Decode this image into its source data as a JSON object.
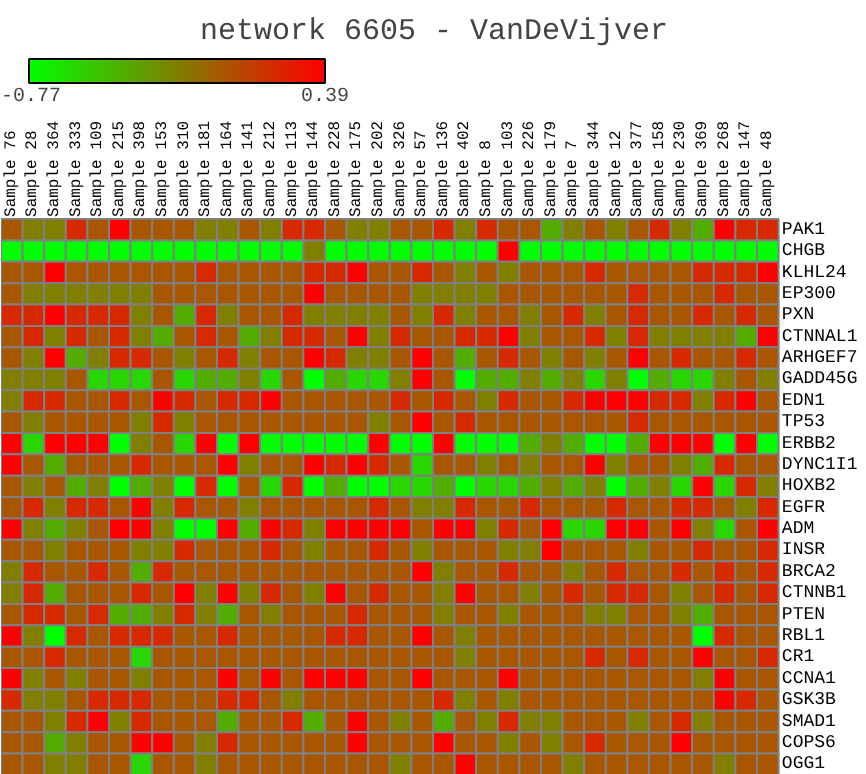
{
  "chart_data": {
    "type": "heatmap",
    "title": "network 6605 - VanDeVijver",
    "categories": [
      "Sample 76",
      "Sample 28",
      "Sample 364",
      "Sample 333",
      "Sample 109",
      "Sample 215",
      "Sample 398",
      "Sample 153",
      "Sample 310",
      "Sample 181",
      "Sample 164",
      "Sample 141",
      "Sample 212",
      "Sample 113",
      "Sample 144",
      "Sample 228",
      "Sample 175",
      "Sample 202",
      "Sample 326",
      "Sample 57",
      "Sample 136",
      "Sample 402",
      "Sample 8",
      "Sample 103",
      "Sample 226",
      "Sample 179",
      "Sample 7",
      "Sample 344",
      "Sample 12",
      "Sample 377",
      "Sample 158",
      "Sample 230",
      "Sample 369",
      "Sample 268",
      "Sample 147",
      "Sample 48"
    ],
    "y_categories": [
      "PAK1",
      "CHGB",
      "KLHL24",
      "EP300",
      "PXN",
      "CTNNAL1",
      "ARHGEF7",
      "GADD45G",
      "EDN1",
      "TP53",
      "ERBB2",
      "DYNC1I1",
      "HOXB2",
      "EGFR",
      "ADM",
      "INSR",
      "BRCA2",
      "CTNNB1",
      "PTEN",
      "RBL1",
      "CR1",
      "CCNA1",
      "GSK3B",
      "SMAD1",
      "COPS6",
      "OGG1"
    ],
    "cells": [
      [
        0.0,
        -0.19,
        -0.19,
        0.2,
        0.0,
        0.39,
        0.0,
        0.0,
        0.0,
        -0.19,
        -0.19,
        0.0,
        -0.19,
        0.2,
        0.2,
        0.0,
        -0.19,
        -0.19,
        0.0,
        0.0,
        0.2,
        -0.19,
        0.2,
        0.0,
        0.0,
        -0.39,
        -0.19,
        0.0,
        -0.19,
        0.0,
        0.2,
        -0.19,
        -0.39,
        0.39,
        0.2,
        0.2
      ],
      [
        -0.77,
        -0.77,
        -0.77,
        -0.77,
        -0.77,
        -0.77,
        -0.77,
        -0.77,
        -0.77,
        -0.77,
        -0.77,
        -0.77,
        -0.77,
        -0.77,
        -0.19,
        -0.77,
        -0.77,
        -0.77,
        -0.77,
        -0.77,
        -0.77,
        -0.77,
        -0.77,
        0.39,
        -0.77,
        -0.77,
        -0.77,
        -0.77,
        -0.77,
        -0.77,
        -0.77,
        -0.77,
        -0.77,
        -0.77,
        -0.77,
        -0.77
      ],
      [
        0.0,
        0.0,
        0.39,
        0.0,
        0.0,
        0.0,
        0.0,
        0.0,
        0.0,
        0.2,
        0.0,
        0.0,
        0.0,
        0.0,
        0.2,
        0.2,
        0.39,
        0.0,
        0.0,
        0.2,
        0.0,
        -0.19,
        0.0,
        -0.19,
        0.0,
        0.0,
        0.0,
        0.2,
        0.0,
        0.0,
        0.0,
        0.0,
        0.2,
        0.2,
        0.2,
        0.39
      ],
      [
        0.0,
        -0.19,
        -0.19,
        -0.19,
        -0.19,
        -0.19,
        -0.19,
        0.0,
        0.0,
        0.0,
        0.0,
        0.0,
        0.0,
        0.0,
        0.39,
        0.0,
        0.0,
        0.0,
        0.0,
        -0.19,
        -0.19,
        -0.19,
        -0.19,
        0.0,
        0.0,
        0.0,
        0.0,
        0.0,
        0.0,
        0.2,
        0.0,
        0.0,
        0.0,
        0.2,
        0.0,
        0.0
      ],
      [
        0.2,
        0.2,
        0.39,
        0.2,
        0.2,
        0.2,
        -0.19,
        0.0,
        -0.39,
        0.2,
        -0.19,
        0.0,
        0.0,
        0.2,
        -0.19,
        -0.19,
        -0.19,
        -0.19,
        0.0,
        -0.19,
        0.2,
        -0.19,
        0.0,
        0.0,
        -0.19,
        0.0,
        0.2,
        -0.19,
        0.0,
        0.2,
        0.0,
        0.0,
        0.2,
        0.0,
        0.2,
        0.0
      ],
      [
        0.0,
        0.2,
        -0.19,
        0.2,
        0.0,
        0.2,
        -0.19,
        -0.39,
        0.0,
        0.2,
        0.0,
        -0.39,
        -0.19,
        0.2,
        0.2,
        0.0,
        0.39,
        -0.19,
        0.2,
        0.0,
        0.0,
        0.2,
        0.2,
        0.39,
        -0.19,
        0.0,
        0.0,
        0.2,
        -0.19,
        0.2,
        -0.19,
        -0.19,
        -0.19,
        -0.19,
        -0.39,
        0.39
      ],
      [
        0.0,
        -0.19,
        0.39,
        -0.39,
        -0.19,
        0.2,
        0.2,
        0.0,
        -0.19,
        0.0,
        0.2,
        -0.19,
        0.0,
        0.0,
        0.39,
        0.2,
        -0.19,
        -0.19,
        0.0,
        0.39,
        0.0,
        -0.39,
        0.0,
        0.2,
        0.0,
        -0.19,
        0.0,
        -0.19,
        0.0,
        0.39,
        0.0,
        0.2,
        0.0,
        0.0,
        0.2,
        0.0
      ],
      [
        -0.19,
        -0.19,
        -0.19,
        0.0,
        -0.58,
        -0.58,
        -0.58,
        0.0,
        -0.58,
        -0.39,
        -0.39,
        -0.19,
        -0.58,
        0.0,
        -0.77,
        -0.39,
        -0.58,
        -0.58,
        -0.19,
        0.39,
        0.0,
        -0.77,
        -0.39,
        -0.39,
        -0.19,
        -0.39,
        -0.19,
        -0.58,
        -0.19,
        -0.77,
        -0.39,
        -0.58,
        -0.58,
        -0.19,
        0.0,
        -0.19
      ],
      [
        -0.19,
        0.2,
        0.2,
        0.0,
        0.0,
        0.2,
        0.0,
        0.39,
        0.2,
        0.0,
        0.2,
        0.2,
        0.39,
        0.0,
        0.0,
        0.0,
        0.0,
        0.0,
        0.2,
        0.0,
        0.2,
        0.0,
        -0.19,
        0.2,
        0.0,
        0.0,
        0.2,
        0.39,
        0.39,
        0.39,
        0.2,
        0.2,
        -0.19,
        0.2,
        0.39,
        0.0
      ],
      [
        0.0,
        -0.19,
        0.0,
        0.0,
        0.0,
        0.0,
        -0.19,
        0.2,
        -0.19,
        0.0,
        0.0,
        0.0,
        0.0,
        0.0,
        0.0,
        0.0,
        0.0,
        -0.19,
        0.0,
        0.39,
        0.0,
        0.2,
        0.0,
        0.0,
        0.0,
        0.0,
        0.0,
        0.0,
        0.0,
        0.2,
        0.0,
        0.0,
        0.0,
        0.0,
        0.0,
        0.0
      ],
      [
        0.39,
        -0.58,
        0.39,
        0.39,
        0.39,
        -0.77,
        -0.19,
        0.0,
        -0.58,
        0.39,
        -0.77,
        0.39,
        -0.77,
        -0.77,
        -0.77,
        -0.77,
        -0.77,
        0.39,
        -0.77,
        -0.77,
        0.39,
        -0.77,
        -0.77,
        -0.77,
        -0.39,
        -0.19,
        -0.39,
        -0.77,
        -0.77,
        -0.39,
        0.39,
        0.39,
        0.39,
        -0.77,
        0.39,
        -0.77
      ],
      [
        0.39,
        0.0,
        -0.39,
        0.0,
        0.0,
        0.0,
        0.2,
        0.0,
        0.0,
        0.0,
        0.39,
        -0.19,
        0.0,
        0.0,
        0.39,
        0.2,
        0.39,
        0.2,
        0.0,
        -0.58,
        0.0,
        0.0,
        -0.19,
        0.0,
        -0.19,
        0.0,
        0.0,
        0.39,
        -0.19,
        0.0,
        0.0,
        -0.19,
        -0.39,
        0.2,
        0.0,
        0.0
      ],
      [
        0.0,
        -0.19,
        0.0,
        -0.39,
        -0.19,
        -0.77,
        -0.39,
        -0.19,
        -0.77,
        0.2,
        -0.77,
        0.0,
        -0.58,
        0.2,
        -0.77,
        -0.39,
        -0.77,
        -0.77,
        -0.58,
        -0.58,
        -0.39,
        -0.77,
        -0.58,
        -0.58,
        -0.39,
        -0.19,
        -0.39,
        -0.19,
        -0.77,
        -0.39,
        -0.19,
        -0.58,
        0.39,
        -0.58,
        0.2,
        -0.19
      ],
      [
        0.0,
        0.2,
        -0.19,
        0.2,
        0.2,
        0.0,
        0.39,
        -0.19,
        0.2,
        0.0,
        0.0,
        -0.19,
        0.0,
        0.0,
        0.0,
        0.0,
        0.0,
        0.2,
        0.0,
        -0.19,
        -0.19,
        0.2,
        0.0,
        0.0,
        0.2,
        0.0,
        0.0,
        0.0,
        0.2,
        0.0,
        0.0,
        0.2,
        0.2,
        0.0,
        -0.19,
        0.2
      ],
      [
        0.39,
        -0.19,
        -0.39,
        -0.19,
        0.0,
        0.39,
        0.39,
        -0.19,
        -0.77,
        -0.77,
        0.39,
        -0.39,
        0.39,
        0.2,
        -0.19,
        0.39,
        0.39,
        0.39,
        0.39,
        0.0,
        0.39,
        0.39,
        -0.19,
        0.2,
        0.0,
        0.39,
        -0.58,
        -0.58,
        0.39,
        0.39,
        0.0,
        0.39,
        -0.19,
        -0.58,
        0.0,
        0.39
      ],
      [
        0.0,
        0.0,
        -0.19,
        0.0,
        0.0,
        0.0,
        -0.19,
        -0.19,
        0.2,
        0.0,
        0.0,
        0.0,
        0.2,
        0.0,
        -0.19,
        0.0,
        0.0,
        0.2,
        0.0,
        -0.19,
        0.0,
        0.0,
        0.0,
        -0.19,
        -0.19,
        0.39,
        0.0,
        0.0,
        0.0,
        -0.19,
        0.0,
        0.0,
        0.2,
        0.0,
        0.0,
        0.2
      ],
      [
        -0.19,
        0.2,
        0.0,
        0.0,
        0.2,
        0.0,
        -0.39,
        0.2,
        0.0,
        0.0,
        0.0,
        0.0,
        0.0,
        0.0,
        0.0,
        0.0,
        0.0,
        0.0,
        0.0,
        0.39,
        -0.19,
        0.0,
        0.0,
        0.2,
        0.0,
        0.0,
        -0.19,
        0.0,
        0.2,
        0.0,
        0.0,
        0.2,
        0.0,
        0.2,
        0.0,
        0.2
      ],
      [
        -0.19,
        0.2,
        -0.39,
        0.0,
        0.0,
        0.0,
        0.2,
        0.0,
        0.39,
        -0.19,
        0.39,
        -0.19,
        0.2,
        0.0,
        -0.19,
        0.39,
        0.0,
        0.2,
        0.0,
        0.0,
        -0.19,
        0.39,
        0.0,
        0.0,
        -0.19,
        0.0,
        0.2,
        0.0,
        0.2,
        0.2,
        0.0,
        -0.19,
        0.0,
        0.2,
        0.0,
        0.2
      ],
      [
        0.0,
        0.2,
        0.2,
        0.0,
        0.2,
        -0.39,
        -0.39,
        -0.19,
        0.2,
        -0.19,
        -0.39,
        0.0,
        -0.19,
        0.0,
        0.0,
        0.0,
        0.2,
        0.0,
        0.0,
        0.0,
        -0.19,
        0.0,
        0.0,
        -0.19,
        0.0,
        0.0,
        0.0,
        -0.19,
        -0.19,
        0.0,
        0.0,
        -0.19,
        -0.39,
        0.0,
        0.0,
        0.0
      ],
      [
        0.39,
        -0.19,
        -0.77,
        0.2,
        0.0,
        0.2,
        0.2,
        0.2,
        0.0,
        0.0,
        0.2,
        0.0,
        0.0,
        0.0,
        0.0,
        0.2,
        0.2,
        0.0,
        0.0,
        0.39,
        0.0,
        -0.19,
        0.0,
        0.0,
        0.0,
        0.0,
        0.0,
        0.0,
        0.0,
        0.0,
        0.0,
        0.0,
        -0.77,
        0.2,
        0.0,
        0.0
      ],
      [
        0.0,
        0.0,
        0.2,
        0.0,
        0.0,
        0.0,
        -0.58,
        0.0,
        0.0,
        0.0,
        0.0,
        0.0,
        0.0,
        0.0,
        0.0,
        0.0,
        0.0,
        0.0,
        0.0,
        0.0,
        0.0,
        -0.19,
        0.0,
        0.0,
        0.0,
        0.0,
        0.0,
        0.2,
        0.0,
        0.2,
        0.0,
        0.0,
        0.39,
        0.0,
        0.0,
        0.2
      ],
      [
        0.39,
        -0.19,
        0.0,
        -0.19,
        0.0,
        0.0,
        -0.19,
        0.0,
        0.0,
        0.0,
        0.39,
        0.0,
        0.39,
        0.0,
        0.39,
        0.39,
        0.39,
        0.0,
        0.0,
        0.39,
        0.0,
        0.0,
        0.0,
        0.39,
        0.0,
        0.0,
        0.0,
        0.0,
        0.0,
        0.0,
        0.0,
        0.0,
        -0.19,
        0.39,
        0.0,
        0.0
      ],
      [
        0.2,
        -0.19,
        -0.19,
        0.0,
        0.2,
        0.2,
        0.2,
        0.0,
        0.0,
        0.0,
        0.2,
        0.2,
        0.0,
        -0.19,
        0.0,
        0.0,
        0.0,
        0.0,
        0.0,
        0.0,
        0.2,
        -0.19,
        0.0,
        -0.19,
        0.0,
        0.0,
        0.0,
        0.0,
        0.0,
        0.0,
        0.0,
        0.0,
        0.0,
        0.39,
        0.2,
        0.0
      ],
      [
        0.0,
        0.0,
        -0.19,
        0.2,
        0.39,
        -0.19,
        0.2,
        0.0,
        0.0,
        0.0,
        -0.39,
        0.0,
        0.0,
        0.2,
        -0.39,
        0.0,
        0.39,
        0.0,
        -0.19,
        0.0,
        -0.39,
        0.0,
        -0.19,
        0.2,
        -0.19,
        -0.19,
        0.0,
        0.0,
        0.0,
        -0.19,
        0.0,
        0.2,
        -0.19,
        0.0,
        0.0,
        0.0
      ],
      [
        0.0,
        0.0,
        -0.39,
        -0.19,
        0.0,
        0.0,
        0.39,
        0.39,
        0.0,
        -0.19,
        0.2,
        0.0,
        0.0,
        0.0,
        0.0,
        0.0,
        0.39,
        0.0,
        0.0,
        0.0,
        0.39,
        0.0,
        0.0,
        -0.19,
        0.0,
        -0.19,
        0.0,
        0.2,
        0.0,
        0.0,
        0.0,
        0.39,
        0.0,
        0.0,
        0.0,
        0.0
      ],
      [
        0.0,
        0.0,
        -0.19,
        -0.19,
        0.0,
        0.0,
        -0.58,
        0.0,
        0.0,
        -0.19,
        0.0,
        0.0,
        0.0,
        0.0,
        0.0,
        0.0,
        0.0,
        0.0,
        -0.19,
        0.0,
        0.0,
        0.39,
        0.0,
        0.0,
        0.0,
        0.0,
        -0.19,
        0.0,
        0.0,
        0.0,
        0.0,
        0.0,
        0.0,
        -0.19,
        0.0,
        0.0
      ]
    ],
    "clim": [
      -0.77,
      0.39
    ],
    "cticks": [
      -0.77,
      0.39
    ],
    "colors": [
      "#00ff00",
      "#ff0000"
    ]
  }
}
